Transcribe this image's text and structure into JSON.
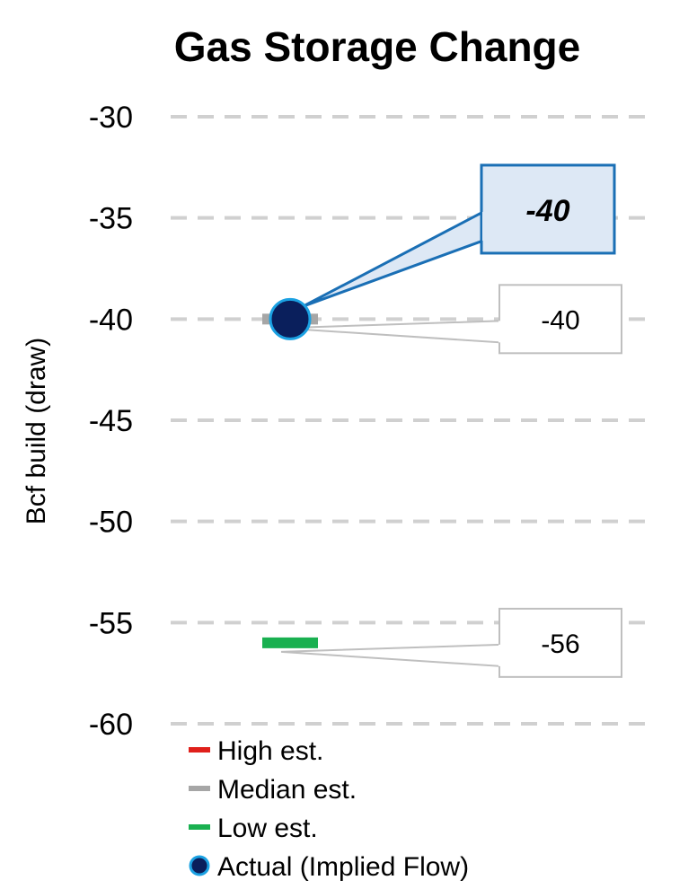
{
  "chart_data": {
    "type": "scatter",
    "title": "Gas Storage Change",
    "ylabel": "Bcf build (draw)",
    "ylim": [
      -60,
      -30
    ],
    "yticks": [
      -30,
      -35,
      -40,
      -45,
      -50,
      -55,
      -60
    ],
    "ytick_labels": [
      "-30",
      "-35",
      "-40",
      "-45",
      "-50",
      "-55",
      "-60"
    ],
    "grid": true,
    "series": [
      {
        "name": "High est.",
        "color": "#e0201b",
        "marker": "dash",
        "values": []
      },
      {
        "name": "Median est.",
        "color": "#a6a6a6",
        "marker": "dash",
        "values": [
          -40
        ]
      },
      {
        "name": "Low est.",
        "color": "#19b050",
        "marker": "dash",
        "values": [
          -56
        ]
      },
      {
        "name": "Actual (Implied Flow)",
        "color": "#0a1f5c",
        "edge_color": "#1ba1e2",
        "marker": "circle",
        "values": [
          -40
        ]
      }
    ],
    "callouts": [
      {
        "label": "-40",
        "series": "Actual (Implied Flow)",
        "style": "highlight",
        "label_value": -35.5
      },
      {
        "label": "-40",
        "series": "Median est.",
        "style": "plain",
        "label_value": -40
      },
      {
        "label": "-56",
        "series": "Low est.",
        "style": "plain",
        "label_value": -56
      }
    ],
    "legend": [
      {
        "label": "High est.",
        "color": "#e0201b",
        "marker": "dash"
      },
      {
        "label": "Median est.",
        "color": "#a6a6a6",
        "marker": "dash"
      },
      {
        "label": "Low est.",
        "color": "#19b050",
        "marker": "dash"
      },
      {
        "label": "Actual (Implied Flow)",
        "color": "#0a1f5c",
        "edge_color": "#1ba1e2",
        "marker": "circle"
      }
    ],
    "legend_position": "bottom-left",
    "colors": {
      "grid": "#d0d0d0",
      "callout_highlight_fill": "#dde8f5",
      "callout_highlight_border": "#1a6fb5",
      "callout_plain_border": "#bfbfbf"
    }
  }
}
